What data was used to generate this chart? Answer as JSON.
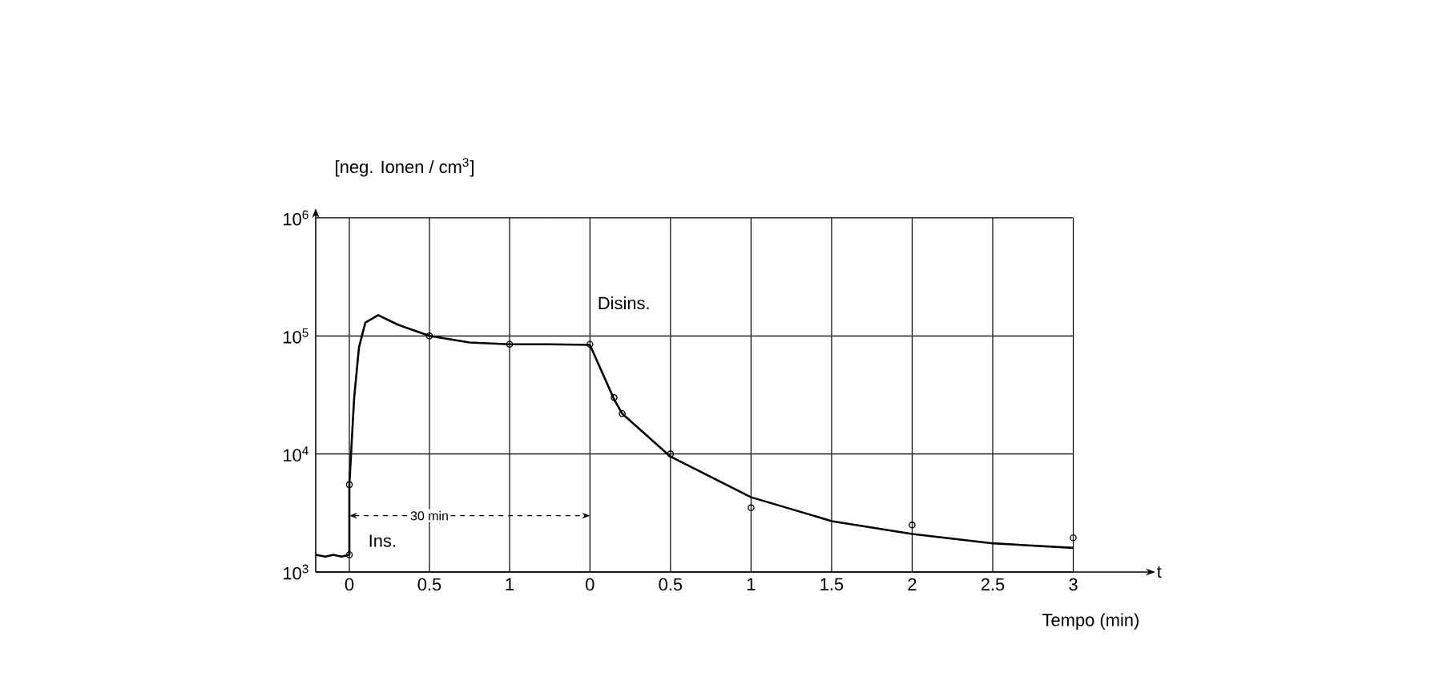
{
  "chart_data": [
    {
      "type": "line",
      "ylabel": "[neg. Ionen / cm$^{3}$]",
      "log": "y",
      "grid": true,
      "xlim": [
        -0.21,
        1.25
      ],
      "ylim": [
        1000,
        1000000
      ],
      "xticks": [
        0,
        0.5,
        1
      ],
      "yticks": [
        {
          "value": 1000,
          "label": "10$^{3}$"
        },
        {
          "value": 10000,
          "label": "10$^{4}$"
        },
        {
          "value": 100000,
          "label": "10$^{5}$"
        },
        {
          "value": 1000000,
          "label": "10$^{6}$"
        }
      ],
      "series": [
        {
          "color": "#000000",
          "x": [
            -0.21,
            -0.15,
            -0.1,
            -0.05,
            0,
            0,
            0.03,
            0.06,
            0.1,
            0.18,
            0.3,
            0.5,
            0.75,
            1,
            1.25
          ],
          "values": [
            1400,
            1350,
            1400,
            1350,
            1400,
            5500,
            30000,
            80000,
            130000,
            150000,
            125000,
            100000,
            88000,
            85000,
            85000
          ]
        },
        {
          "type": "scatter",
          "marker": "circle",
          "color": "#000000",
          "x": [
            0,
            0,
            0.5,
            1
          ],
          "values": [
            1400,
            5500,
            100000,
            85000
          ]
        }
      ],
      "annotations": [
        {
          "text": "Ins.",
          "x": 0,
          "y": 1400
        },
        {
          "text": "30 min",
          "x": 0.5,
          "y": 3000
        }
      ]
    },
    {
      "type": "line",
      "xlabel": "Tempo (min)",
      "log": "y",
      "grid": true,
      "tick_labels": "x",
      "xlim": [
        -0.25,
        3.45
      ],
      "ylim": [
        1000,
        1000000
      ],
      "xticks": [
        0,
        0.5,
        1,
        1.5,
        2,
        2.5,
        3
      ],
      "yticks": [
        1000,
        10000,
        100000,
        1000000
      ],
      "series": [
        {
          "color": "#000000",
          "x": [
            -0.25,
            0,
            0.15,
            0.2,
            0.5,
            1,
            1.5,
            2,
            2.5,
            3
          ],
          "values": [
            85000,
            84000,
            29000,
            22000,
            9500,
            4300,
            2700,
            2100,
            1750,
            1600
          ]
        },
        {
          "type": "scatter",
          "marker": "circle",
          "color": "#000000",
          "x": [
            0,
            0.15,
            0.2,
            0.5,
            1,
            2,
            3
          ],
          "values": [
            85000,
            30000,
            22000,
            10000,
            3500,
            2500,
            1950
          ]
        }
      ],
      "annotations": [
        "Disins.",
        "t"
      ]
    }
  ]
}
